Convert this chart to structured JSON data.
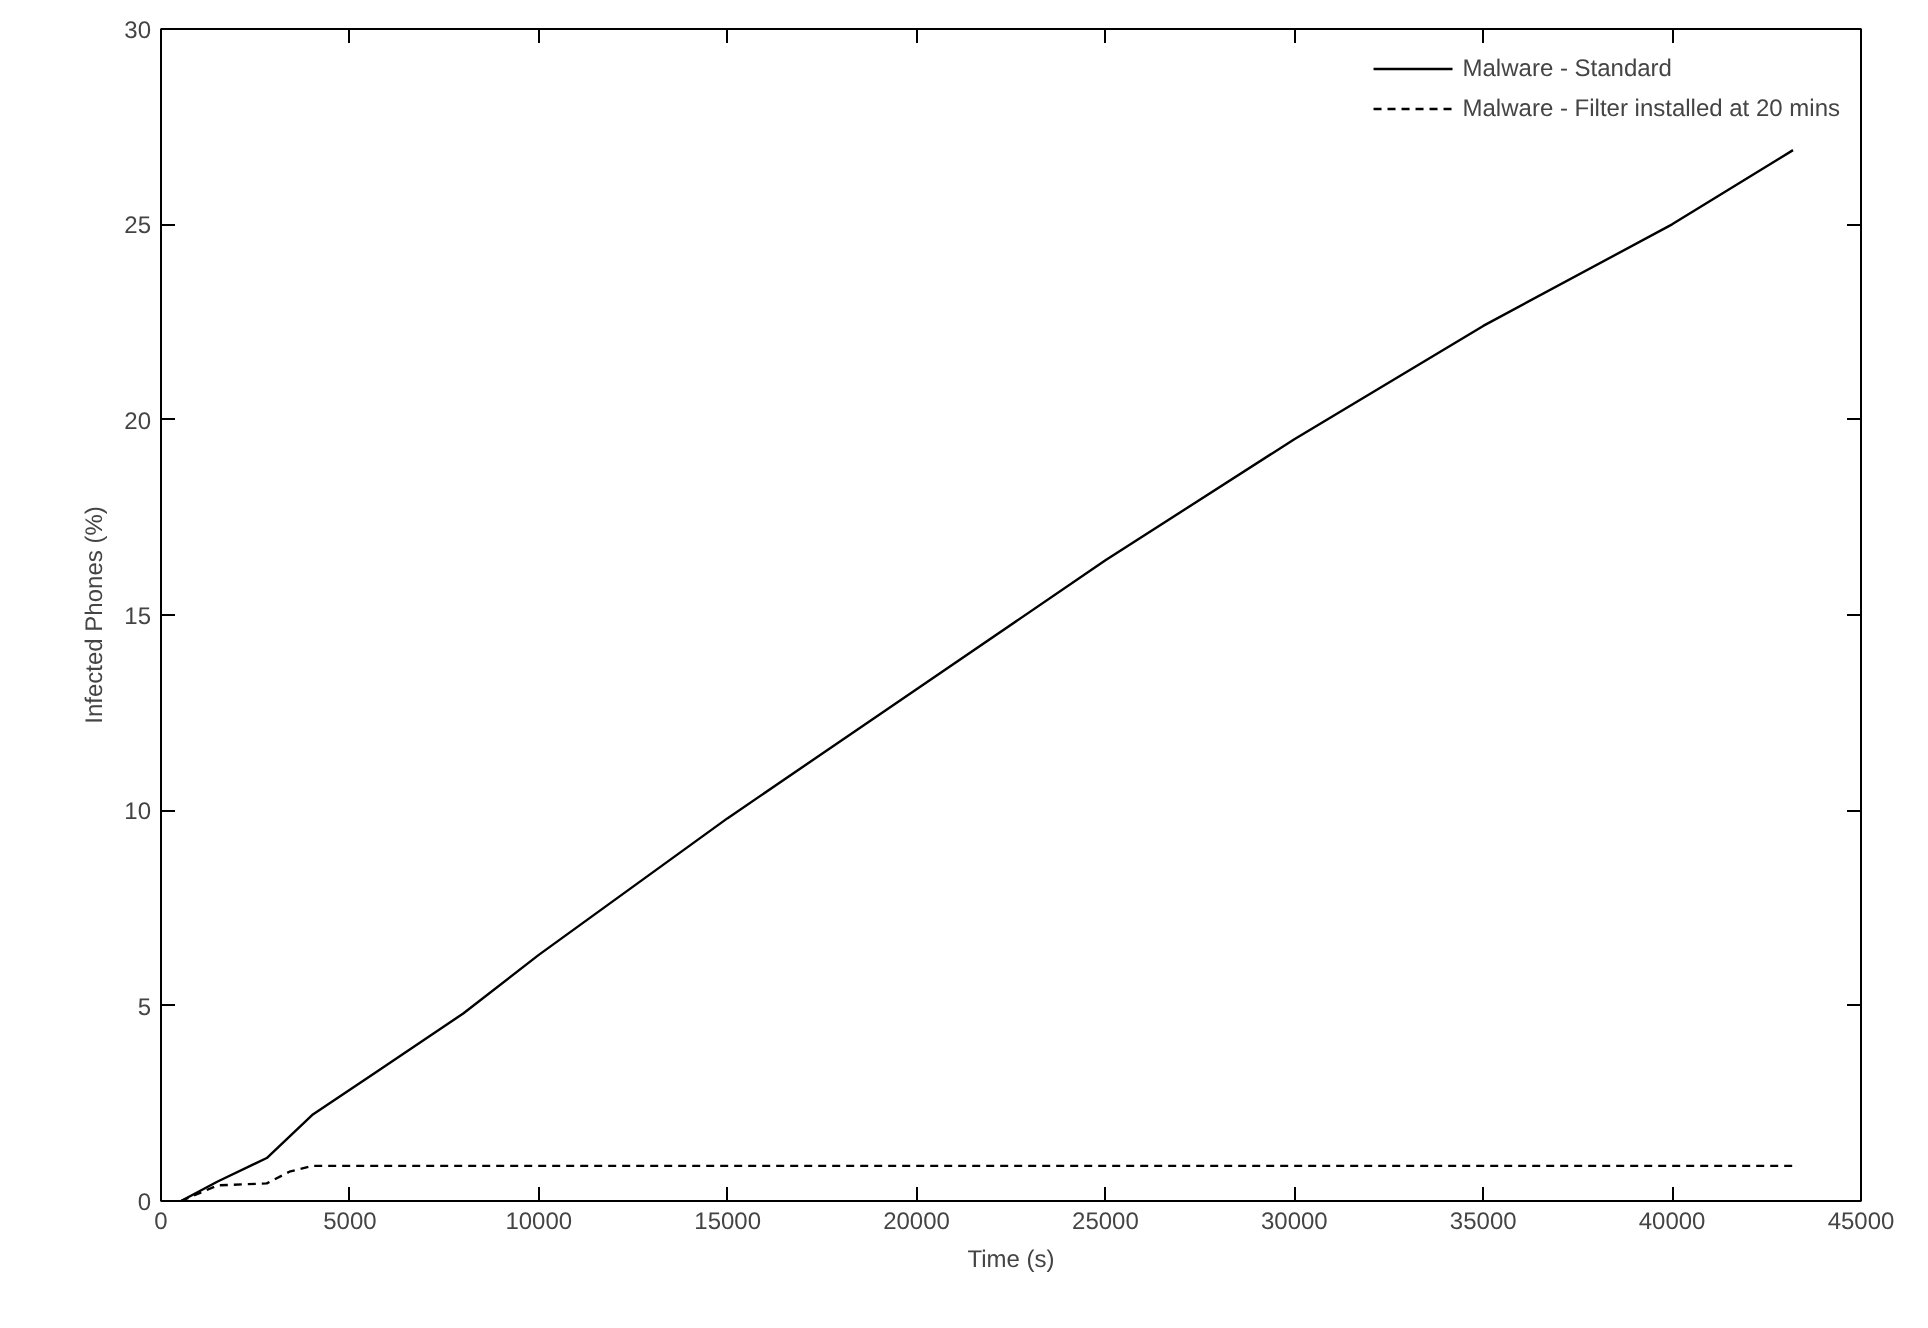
{
  "chart_data": {
    "type": "line",
    "xlabel": "Time (s)",
    "ylabel": "Infected Phones (%)",
    "xlim": [
      0,
      45000
    ],
    "ylim": [
      0,
      30
    ],
    "xticks": [
      0,
      5000,
      10000,
      15000,
      20000,
      25000,
      30000,
      35000,
      40000,
      45000
    ],
    "yticks": [
      0,
      5,
      10,
      15,
      20,
      25,
      30
    ],
    "grid": false,
    "legend": "top right",
    "marker": "none",
    "series": [
      {
        "name": "Malware - Standard",
        "color": "#000000",
        "line_style": "solid",
        "x": [
          530,
          1500,
          2800,
          4000,
          5700,
          8000,
          10000,
          15000,
          20000,
          25000,
          30000,
          35000,
          40000,
          43200
        ],
        "values": [
          0,
          0.5,
          1.1,
          2.2,
          3.3,
          4.8,
          6.3,
          9.8,
          13.1,
          16.4,
          19.5,
          22.4,
          25.0,
          26.9
        ]
      },
      {
        "name": "Malware - Filter installed at 20 mins",
        "color": "#000000",
        "line_style": "dashed",
        "x": [
          530,
          1500,
          2800,
          3400,
          4000,
          10000,
          20000,
          30000,
          43200
        ],
        "values": [
          0,
          0.4,
          0.45,
          0.75,
          0.9,
          0.9,
          0.9,
          0.9,
          0.9
        ]
      }
    ]
  }
}
